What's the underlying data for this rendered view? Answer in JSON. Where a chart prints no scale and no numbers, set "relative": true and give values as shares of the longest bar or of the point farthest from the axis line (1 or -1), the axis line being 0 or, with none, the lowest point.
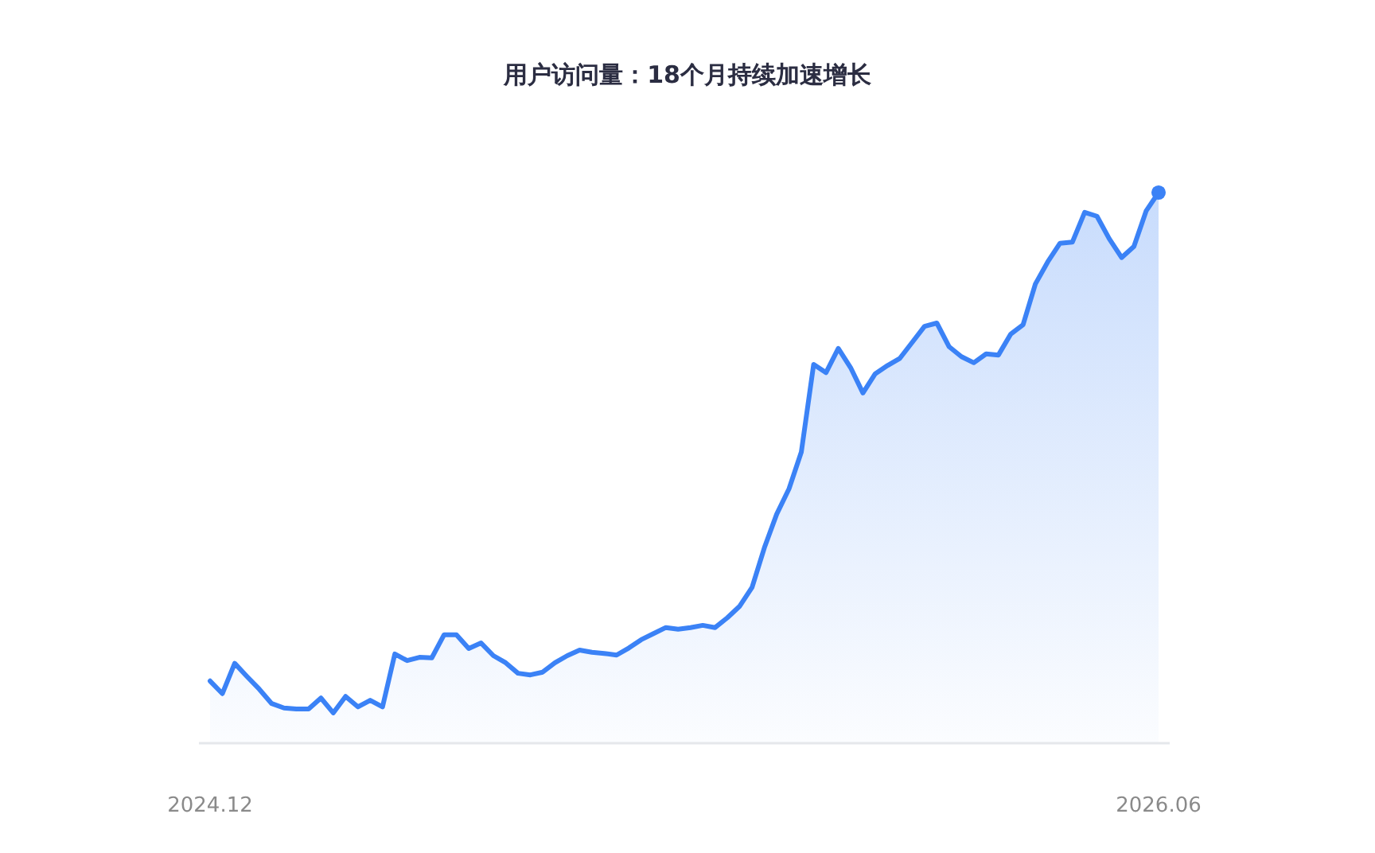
{
  "chart_data": {
    "type": "area",
    "title": "用户访问量：18个月持续加速增长",
    "relative": true,
    "categories": [
      "2024.12",
      null,
      null,
      null,
      null,
      null,
      null,
      null,
      null,
      null,
      null,
      null,
      null,
      null,
      null,
      null,
      null,
      null,
      null,
      null,
      null,
      null,
      null,
      null,
      null,
      null,
      null,
      null,
      null,
      null,
      null,
      null,
      null,
      null,
      null,
      null,
      null,
      null,
      null,
      null,
      null,
      null,
      null,
      null,
      null,
      null,
      null,
      null,
      null,
      null,
      null,
      null,
      null,
      null,
      null,
      null,
      null,
      null,
      null,
      null,
      null,
      null,
      null,
      null,
      null,
      null,
      null,
      null,
      null,
      null,
      null,
      null,
      null,
      null,
      null,
      null,
      null,
      "2026.06"
    ],
    "series": [
      {
        "color": "#3b82f6",
        "values": [
          0.113,
          0.09,
          0.145,
          0.121,
          0.098,
          0.072,
          0.064,
          0.062,
          0.062,
          0.082,
          0.055,
          0.085,
          0.066,
          0.078,
          0.066,
          0.162,
          0.15,
          0.156,
          0.155,
          0.197,
          0.197,
          0.172,
          0.182,
          0.159,
          0.146,
          0.127,
          0.124,
          0.129,
          0.146,
          0.159,
          0.169,
          0.165,
          0.163,
          0.16,
          0.173,
          0.188,
          0.199,
          0.21,
          0.207,
          0.21,
          0.214,
          0.21,
          0.228,
          0.249,
          0.283,
          0.355,
          0.416,
          0.462,
          0.529,
          0.688,
          0.673,
          0.717,
          0.682,
          0.636,
          0.671,
          0.686,
          0.699,
          0.728,
          0.757,
          0.763,
          0.72,
          0.702,
          0.691,
          0.707,
          0.705,
          0.743,
          0.76,
          0.834,
          0.874,
          0.908,
          0.91,
          0.964,
          0.957,
          0.916,
          0.882,
          0.902,
          0.967,
          1
        ]
      },
      {
        "type": "scatter",
        "color": "#3b82f6",
        "values": [
          null,
          null,
          null,
          null,
          null,
          null,
          null,
          null,
          null,
          null,
          null,
          null,
          null,
          null,
          null,
          null,
          null,
          null,
          null,
          null,
          null,
          null,
          null,
          null,
          null,
          null,
          null,
          null,
          null,
          null,
          null,
          null,
          null,
          null,
          null,
          null,
          null,
          null,
          null,
          null,
          null,
          null,
          null,
          null,
          null,
          null,
          null,
          null,
          null,
          null,
          null,
          null,
          null,
          null,
          null,
          null,
          null,
          null,
          null,
          null,
          null,
          null,
          null,
          null,
          null,
          null,
          null,
          null,
          null,
          null,
          null,
          null,
          null,
          null,
          null,
          null,
          null,
          1
        ]
      }
    ]
  }
}
